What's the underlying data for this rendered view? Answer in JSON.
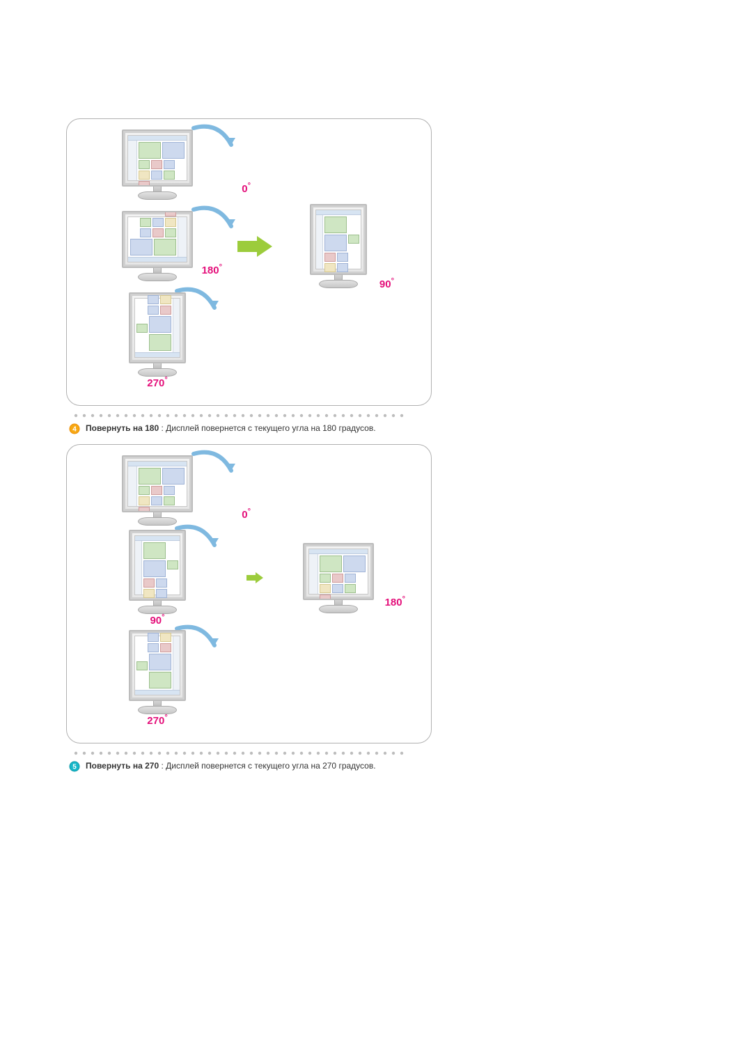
{
  "colors": {
    "accent_pink": "#e40f7a",
    "arrow_arc": "#7fb9e0",
    "arrow_big": "#9ccc3c",
    "arrow_big2": "#9ccc3c",
    "border": "#b0b0b0",
    "dot": "#bdbdbd",
    "badge4_fill": "#f7a813",
    "badge4_ring": "#ec8c00",
    "badge5_fill": "#16b7c9",
    "badge5_ring": "#0e99a8",
    "text": "#333333"
  },
  "dots": {
    "count": 40,
    "spacing": 12,
    "radius": 2.2
  },
  "figures": {
    "fig1": {
      "left_column_angles": [
        "0",
        "180",
        "270"
      ],
      "result_angle": "90",
      "arrow_size": "big"
    },
    "fig2": {
      "left_column_angles": [
        "0",
        "90",
        "270"
      ],
      "result_angle": "180",
      "arrow_size": "small"
    }
  },
  "items": {
    "item4": {
      "badge_number": "4",
      "title": "Повернуть на 180",
      "sep": " : ",
      "desc": "Дисплей повернется с текущего угла на 180 градусов."
    },
    "item5": {
      "badge_number": "5",
      "title": "Повернуть на 270",
      "sep": " : ",
      "desc": "Дисплей повернется с текущего угла на 270 градусов."
    }
  },
  "typography": {
    "body_fontsize": 12,
    "angle_fontsize": 15
  }
}
